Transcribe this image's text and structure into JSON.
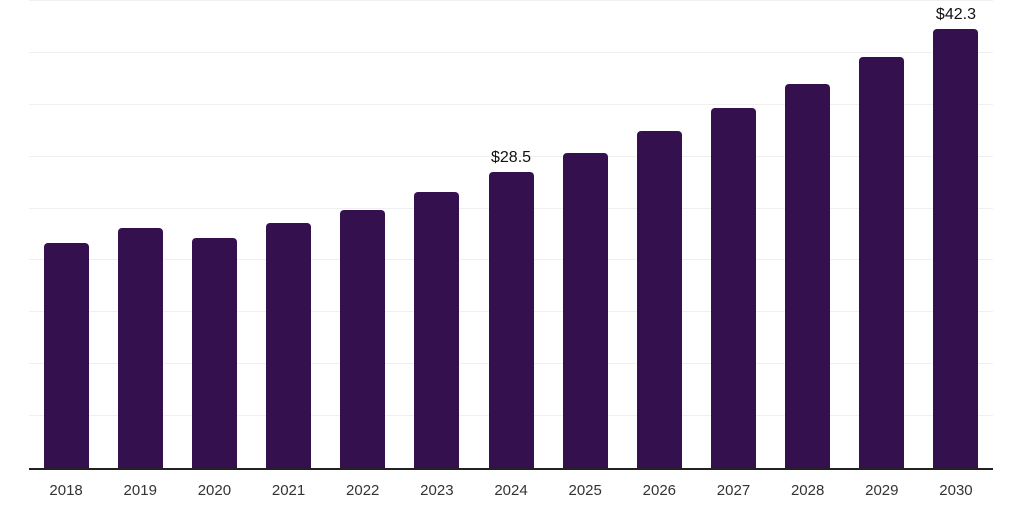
{
  "chart_data": {
    "type": "bar",
    "title": "",
    "xlabel": "",
    "ylabel": "",
    "categories": [
      "2018",
      "2019",
      "2020",
      "2021",
      "2022",
      "2023",
      "2024",
      "2025",
      "2026",
      "2027",
      "2028",
      "2029",
      "2030"
    ],
    "values": [
      21.7,
      23.1,
      22.2,
      23.6,
      24.9,
      26.6,
      28.5,
      30.4,
      32.5,
      34.7,
      37.0,
      39.6,
      42.3
    ],
    "annotations": [
      {
        "category": "2024",
        "label": "$28.5"
      },
      {
        "category": "2030",
        "label": "$42.3"
      }
    ],
    "ylim": [
      0,
      45
    ],
    "gridline_step": 5,
    "grid": "horizontal",
    "y_tick_labels_visible": false,
    "legend": "none",
    "colors": {
      "bar": "#34104e",
      "axis_line": "#222222",
      "gridline": "#efefef",
      "tick_label": "#333333",
      "value_label": "#111111",
      "background": "#ffffff"
    }
  }
}
